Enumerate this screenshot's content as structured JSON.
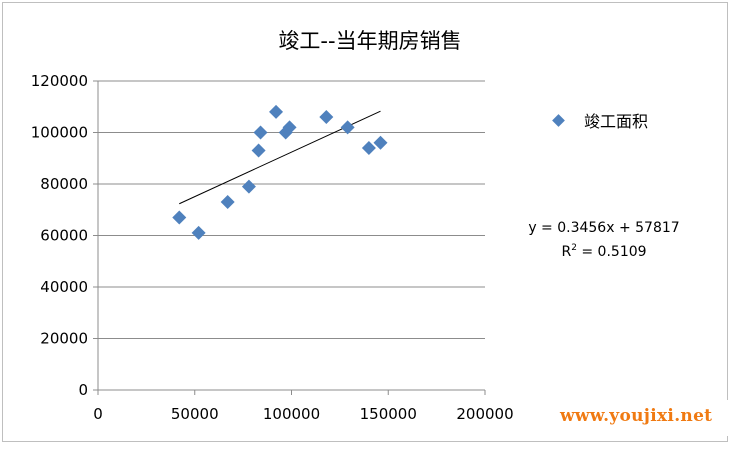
{
  "chart_data": {
    "type": "scatter",
    "title": "竣工--当年期房销售",
    "xlabel": "",
    "ylabel": "",
    "xlim": [
      0,
      200000
    ],
    "ylim": [
      0,
      120000
    ],
    "x_ticks": [
      "0",
      "50000",
      "100000",
      "150000",
      "200000"
    ],
    "y_ticks": [
      "0",
      "20000",
      "40000",
      "60000",
      "80000",
      "100000",
      "120000"
    ],
    "grid": "horizontal",
    "legend_position": "right",
    "series": [
      {
        "name": "竣工面积",
        "color": "#4f81bd",
        "marker": "diamond",
        "points": [
          {
            "x": 42000,
            "y": 67000
          },
          {
            "x": 52000,
            "y": 61000
          },
          {
            "x": 67000,
            "y": 73000
          },
          {
            "x": 78000,
            "y": 79000
          },
          {
            "x": 83000,
            "y": 93000
          },
          {
            "x": 84000,
            "y": 100000
          },
          {
            "x": 92000,
            "y": 108000
          },
          {
            "x": 97000,
            "y": 100000
          },
          {
            "x": 99000,
            "y": 102000
          },
          {
            "x": 118000,
            "y": 106000
          },
          {
            "x": 129000,
            "y": 102000
          },
          {
            "x": 140000,
            "y": 94000
          },
          {
            "x": 146000,
            "y": 96000
          }
        ]
      }
    ],
    "trendline": {
      "slope": 0.3456,
      "intercept": 57817,
      "x_range": [
        42000,
        146000
      ],
      "equation": "y = 0.3456x + 57817",
      "r2_label": "R",
      "r2_value": " = 0.5109"
    }
  },
  "watermark": "www.youjixi.net"
}
